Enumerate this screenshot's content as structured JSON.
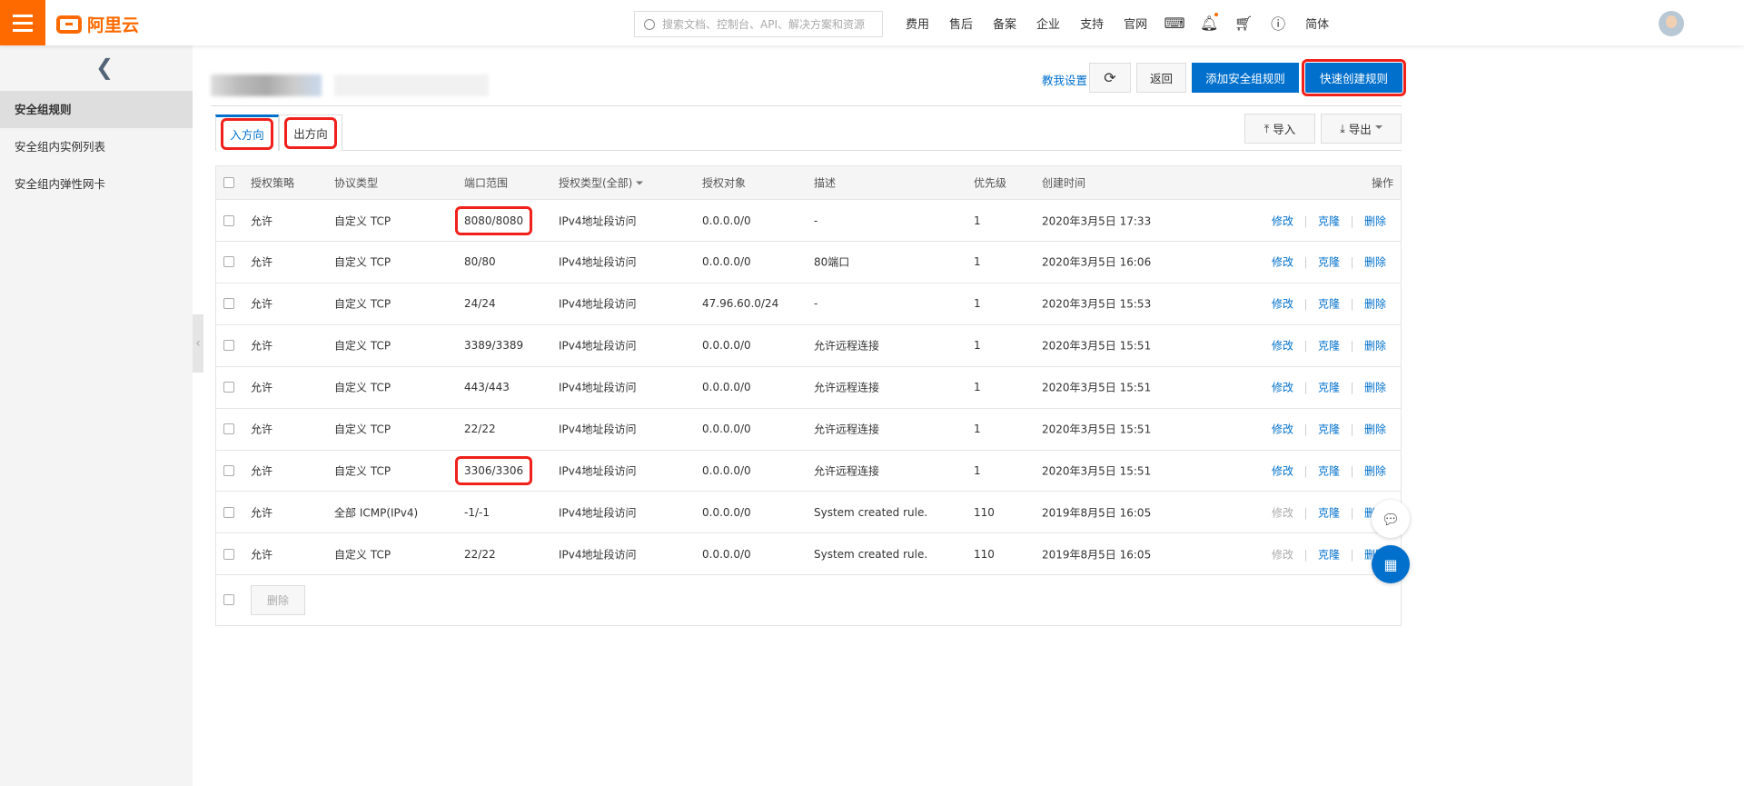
{
  "topbar": {
    "logo": "阿里云",
    "search_placeholder": "搜索文档、控制台、API、解决方案和资源",
    "nav": [
      "费用",
      "售后",
      "备案",
      "企业",
      "支持",
      "官网"
    ],
    "lang": "简体",
    "accent": "#ff6a00"
  },
  "sidebar": {
    "items": [
      {
        "label": "安全组规则",
        "active": true
      },
      {
        "label": "安全组内实例列表"
      },
      {
        "label": "安全组内弹性网卡"
      }
    ]
  },
  "header": {
    "help_link": "教我设置",
    "back": "返回",
    "add_rule": "添加安全组规则",
    "quick_create": "快速创建规则"
  },
  "tabs": [
    {
      "label": "入方向",
      "active": true
    },
    {
      "label": "出方向"
    }
  ],
  "tools": {
    "import": "导入",
    "export": "导出"
  },
  "table": {
    "columns": [
      "授权策略",
      "协议类型",
      "端口范围",
      "授权类型(全部)",
      "授权对象",
      "描述",
      "优先级",
      "创建时间",
      "操作"
    ],
    "actions": [
      "修改",
      "克隆",
      "删除"
    ],
    "rows": [
      {
        "policy": "允许",
        "protocol": "自定义 TCP",
        "port": "8080/8080",
        "auth_type": "IPv4地址段访问",
        "target": "0.0.0.0/0",
        "desc": "-",
        "priority": "1",
        "created": "2020年3月5日 17:33",
        "edit_disabled": false,
        "port_highlight": true
      },
      {
        "policy": "允许",
        "protocol": "自定义 TCP",
        "port": "80/80",
        "auth_type": "IPv4地址段访问",
        "target": "0.0.0.0/0",
        "desc": "80端口",
        "priority": "1",
        "created": "2020年3月5日 16:06",
        "edit_disabled": false
      },
      {
        "policy": "允许",
        "protocol": "自定义 TCP",
        "port": "24/24",
        "auth_type": "IPv4地址段访问",
        "target": "47.96.60.0/24",
        "desc": "-",
        "priority": "1",
        "created": "2020年3月5日 15:53",
        "edit_disabled": false
      },
      {
        "policy": "允许",
        "protocol": "自定义 TCP",
        "port": "3389/3389",
        "auth_type": "IPv4地址段访问",
        "target": "0.0.0.0/0",
        "desc": "允许远程连接",
        "priority": "1",
        "created": "2020年3月5日 15:51",
        "edit_disabled": false
      },
      {
        "policy": "允许",
        "protocol": "自定义 TCP",
        "port": "443/443",
        "auth_type": "IPv4地址段访问",
        "target": "0.0.0.0/0",
        "desc": "允许远程连接",
        "priority": "1",
        "created": "2020年3月5日 15:51",
        "edit_disabled": false
      },
      {
        "policy": "允许",
        "protocol": "自定义 TCP",
        "port": "22/22",
        "auth_type": "IPv4地址段访问",
        "target": "0.0.0.0/0",
        "desc": "允许远程连接",
        "priority": "1",
        "created": "2020年3月5日 15:51",
        "edit_disabled": false
      },
      {
        "policy": "允许",
        "protocol": "自定义 TCP",
        "port": "3306/3306",
        "auth_type": "IPv4地址段访问",
        "target": "0.0.0.0/0",
        "desc": "允许远程连接",
        "priority": "1",
        "created": "2020年3月5日 15:51",
        "edit_disabled": false,
        "port_highlight": true
      },
      {
        "policy": "允许",
        "protocol": "全部 ICMP(IPv4)",
        "port": "-1/-1",
        "auth_type": "IPv4地址段访问",
        "target": "0.0.0.0/0",
        "desc": "System created rule.",
        "priority": "110",
        "created": "2019年8月5日 16:05",
        "edit_disabled": true
      },
      {
        "policy": "允许",
        "protocol": "自定义 TCP",
        "port": "22/22",
        "auth_type": "IPv4地址段访问",
        "target": "0.0.0.0/0",
        "desc": "System created rule.",
        "priority": "110",
        "created": "2019年8月5日 16:05",
        "edit_disabled": true
      }
    ],
    "bulk_delete": "删除"
  },
  "colors": {
    "primary": "#0070cc",
    "highlight": "#f0201a"
  }
}
